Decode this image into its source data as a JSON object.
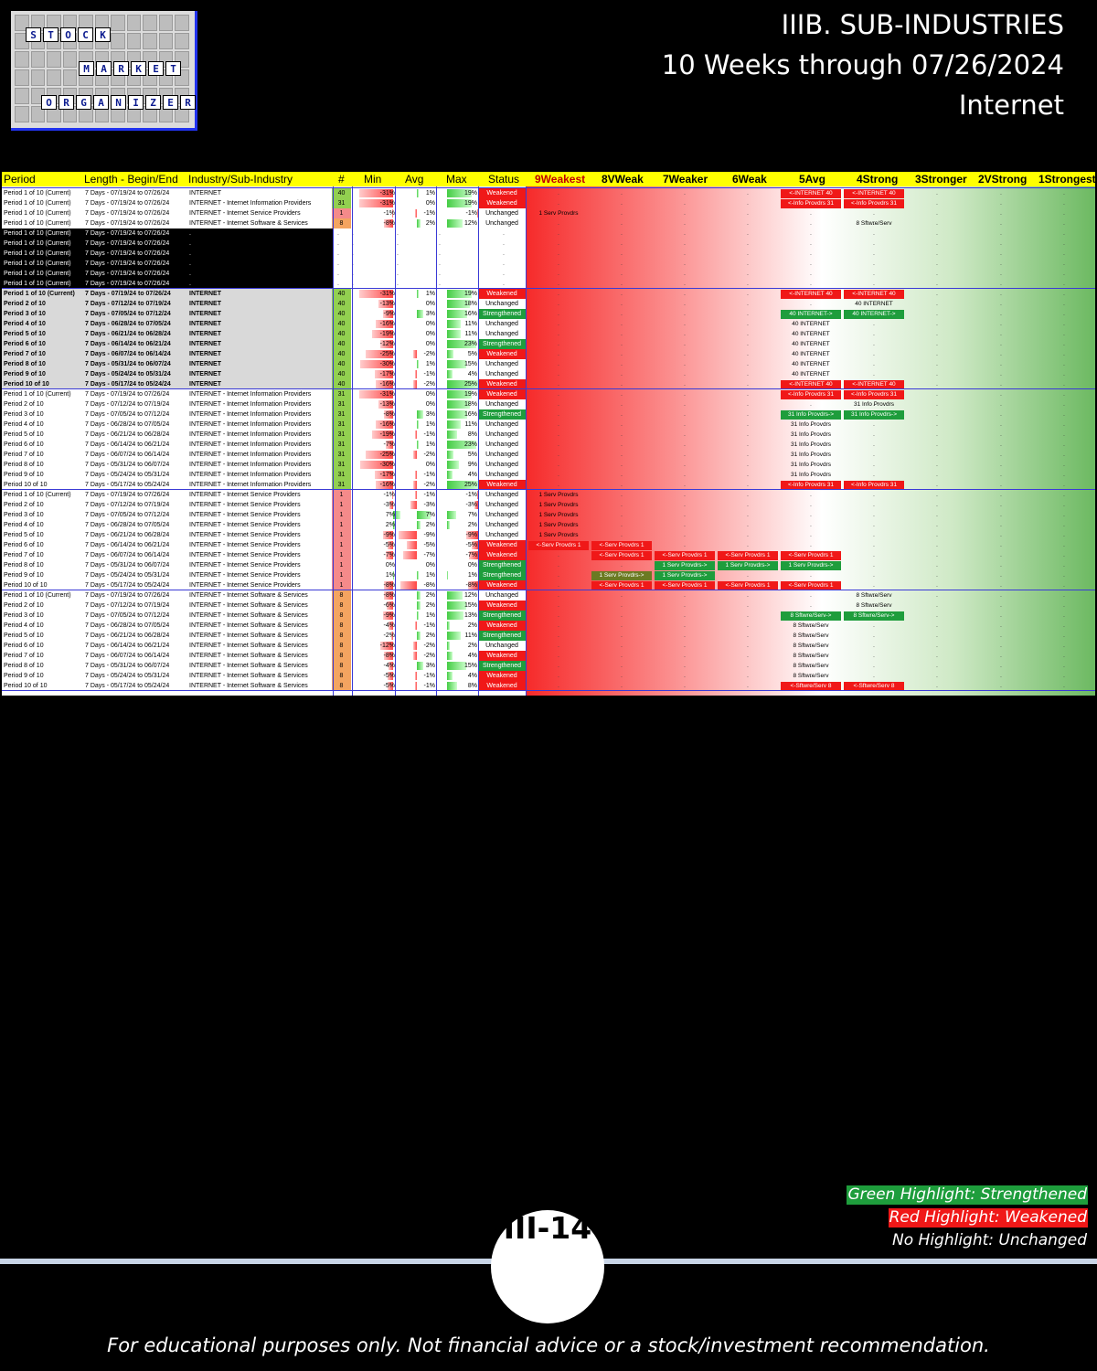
{
  "logo": {
    "row1": [
      "S",
      "T",
      "O",
      "C",
      "K"
    ],
    "row2": [
      "M",
      "A",
      "R",
      "K",
      "E",
      "T"
    ],
    "row3": [
      "O",
      "R",
      "G",
      "A",
      "N",
      "I",
      "Z",
      "E",
      "R"
    ]
  },
  "title": {
    "line1": "IIIB. SUB-INDUSTRIES",
    "line2": "10 Weeks through 07/26/2024",
    "line3": "Internet"
  },
  "colors": {
    "green": "#1e9d3c",
    "red": "#f01818",
    "yellow": "#ffff00",
    "lime": "#92d050",
    "orange": "#f4a460",
    "olive": "#6b7a22"
  },
  "table": {
    "headers": [
      "Period",
      "Length - Begin/End",
      "Industry/Sub-Industry",
      "#",
      "Min",
      "Avg",
      "Max",
      "Status",
      "9Weakest",
      "8VWeak",
      "7Weaker",
      "6Weak",
      "5Avg",
      "4Strong",
      "3Stronger",
      "2VStrong",
      "1Strongest"
    ],
    "rows": [
      [
        "Period 1 of 10 (Current)",
        "7 Days - 07/19/24 to 07/26/24",
        "INTERNET",
        "40",
        "-31%",
        "1%",
        "19%",
        "Weakened"
      ],
      [
        "Period 1 of 10 (Current)",
        "7 Days - 07/19/24 to 07/26/24",
        "INTERNET - Internet Information Providers",
        "31",
        "-31%",
        "0%",
        "19%",
        "Weakened"
      ],
      [
        "Period 1 of 10 (Current)",
        "7 Days - 07/19/24 to 07/26/24",
        "INTERNET - Internet Service Providers",
        "1",
        "-1%",
        "-1%",
        "-1%",
        "Unchanged"
      ],
      [
        "Period 1 of 10 (Current)",
        "7 Days - 07/19/24 to 07/26/24",
        "INTERNET - Internet Software & Services",
        "8",
        "-8%",
        "2%",
        "12%",
        "Unchanged"
      ],
      [
        "Period 1 of 10 (Current)",
        "7 Days - 07/19/24 to 07/26/24",
        ".",
        "",
        "",
        "",
        "",
        ""
      ],
      [
        "Period 1 of 10 (Current)",
        "7 Days - 07/19/24 to 07/26/24",
        ".",
        "",
        "",
        "",
        "",
        ""
      ],
      [
        "Period 1 of 10 (Current)",
        "7 Days - 07/19/24 to 07/26/24",
        ".",
        "",
        "",
        "",
        "",
        ""
      ],
      [
        "Period 1 of 10 (Current)",
        "7 Days - 07/19/24 to 07/26/24",
        ".",
        "",
        "",
        "",
        "",
        ""
      ],
      [
        "Period 1 of 10 (Current)",
        "7 Days - 07/19/24 to 07/26/24",
        ".",
        "",
        "",
        "",
        "",
        ""
      ],
      [
        "Period 1 of 10 (Current)",
        "7 Days - 07/19/24 to 07/26/24",
        ".",
        "",
        "",
        "",
        "",
        ""
      ],
      [
        "Period 1 of 10 (Current)",
        "7 Days - 07/19/24 to 07/26/24",
        "INTERNET",
        "40",
        "-31%",
        "1%",
        "19%",
        "Weakened"
      ],
      [
        "Period 2 of 10",
        "7 Days - 07/12/24 to 07/19/24",
        "INTERNET",
        "40",
        "-13%",
        "0%",
        "18%",
        "Unchanged"
      ],
      [
        "Period 3 of 10",
        "7 Days - 07/05/24 to 07/12/24",
        "INTERNET",
        "40",
        "-9%",
        "3%",
        "16%",
        "Strengthened"
      ],
      [
        "Period 4 of 10",
        "7 Days - 06/28/24 to 07/05/24",
        "INTERNET",
        "40",
        "-16%",
        "0%",
        "11%",
        "Unchanged"
      ],
      [
        "Period 5 of 10",
        "7 Days - 06/21/24 to 06/28/24",
        "INTERNET",
        "40",
        "-19%",
        "0%",
        "11%",
        "Unchanged"
      ],
      [
        "Period 6 of 10",
        "7 Days - 06/14/24 to 06/21/24",
        "INTERNET",
        "40",
        "-12%",
        "0%",
        "23%",
        "Strengthened"
      ],
      [
        "Period 7 of 10",
        "7 Days - 06/07/24 to 06/14/24",
        "INTERNET",
        "40",
        "-25%",
        "-2%",
        "5%",
        "Weakened"
      ],
      [
        "Period 8 of 10",
        "7 Days - 05/31/24 to 06/07/24",
        "INTERNET",
        "40",
        "-30%",
        "1%",
        "15%",
        "Unchanged"
      ],
      [
        "Period 9 of 10",
        "7 Days - 05/24/24 to 05/31/24",
        "INTERNET",
        "40",
        "-17%",
        "-1%",
        "4%",
        "Unchanged"
      ],
      [
        "Period 10 of 10",
        "7 Days - 05/17/24 to 05/24/24",
        "INTERNET",
        "40",
        "-16%",
        "-2%",
        "25%",
        "Weakened"
      ],
      [
        "Period 1 of 10 (Current)",
        "7 Days - 07/19/24 to 07/26/24",
        "INTERNET - Internet Information Providers",
        "31",
        "-31%",
        "0%",
        "19%",
        "Weakened"
      ],
      [
        "Period 2 of 10",
        "7 Days - 07/12/24 to 07/19/24",
        "INTERNET - Internet Information Providers",
        "31",
        "-13%",
        "0%",
        "18%",
        "Unchanged"
      ],
      [
        "Period 3 of 10",
        "7 Days - 07/05/24 to 07/12/24",
        "INTERNET - Internet Information Providers",
        "31",
        "-8%",
        "3%",
        "16%",
        "Strengthened"
      ],
      [
        "Period 4 of 10",
        "7 Days - 06/28/24 to 07/05/24",
        "INTERNET - Internet Information Providers",
        "31",
        "-16%",
        "1%",
        "11%",
        "Unchanged"
      ],
      [
        "Period 5 of 10",
        "7 Days - 06/21/24 to 06/28/24",
        "INTERNET - Internet Information Providers",
        "31",
        "-19%",
        "-1%",
        "8%",
        "Unchanged"
      ],
      [
        "Period 6 of 10",
        "7 Days - 06/14/24 to 06/21/24",
        "INTERNET - Internet Information Providers",
        "31",
        "-7%",
        "1%",
        "23%",
        "Unchanged"
      ],
      [
        "Period 7 of 10",
        "7 Days - 06/07/24 to 06/14/24",
        "INTERNET - Internet Information Providers",
        "31",
        "-25%",
        "-2%",
        "5%",
        "Unchanged"
      ],
      [
        "Period 8 of 10",
        "7 Days - 05/31/24 to 06/07/24",
        "INTERNET - Internet Information Providers",
        "31",
        "-30%",
        "0%",
        "9%",
        "Unchanged"
      ],
      [
        "Period 9 of 10",
        "7 Days - 05/24/24 to 05/31/24",
        "INTERNET - Internet Information Providers",
        "31",
        "-17%",
        "-1%",
        "4%",
        "Unchanged"
      ],
      [
        "Period 10 of 10",
        "7 Days - 05/17/24 to 05/24/24",
        "INTERNET - Internet Information Providers",
        "31",
        "-16%",
        "-2%",
        "25%",
        "Weakened"
      ],
      [
        "Period 1 of 10 (Current)",
        "7 Days - 07/19/24 to 07/26/24",
        "INTERNET - Internet Service Providers",
        "1",
        "-1%",
        "-1%",
        "-1%",
        "Unchanged"
      ],
      [
        "Period 2 of 10",
        "7 Days - 07/12/24 to 07/19/24",
        "INTERNET - Internet Service Providers",
        "1",
        "-3%",
        "-3%",
        "-3%",
        "Unchanged"
      ],
      [
        "Period 3 of 10",
        "7 Days - 07/05/24 to 07/12/24",
        "INTERNET - Internet Service Providers",
        "1",
        "7%",
        "7%",
        "7%",
        "Unchanged"
      ],
      [
        "Period 4 of 10",
        "7 Days - 06/28/24 to 07/05/24",
        "INTERNET - Internet Service Providers",
        "1",
        "2%",
        "2%",
        "2%",
        "Unchanged"
      ],
      [
        "Period 5 of 10",
        "7 Days - 06/21/24 to 06/28/24",
        "INTERNET - Internet Service Providers",
        "1",
        "-9%",
        "-9%",
        "-9%",
        "Unchanged"
      ],
      [
        "Period 6 of 10",
        "7 Days - 06/14/24 to 06/21/24",
        "INTERNET - Internet Service Providers",
        "1",
        "-5%",
        "-5%",
        "-5%",
        "Weakened"
      ],
      [
        "Period 7 of 10",
        "7 Days - 06/07/24 to 06/14/24",
        "INTERNET - Internet Service Providers",
        "1",
        "-7%",
        "-7%",
        "-7%",
        "Weakened"
      ],
      [
        "Period 8 of 10",
        "7 Days - 05/31/24 to 06/07/24",
        "INTERNET - Internet Service Providers",
        "1",
        "0%",
        "0%",
        "0%",
        "Strengthened"
      ],
      [
        "Period 9 of 10",
        "7 Days - 05/24/24 to 05/31/24",
        "INTERNET - Internet Service Providers",
        "1",
        "1%",
        "1%",
        "1%",
        "Strengthened"
      ],
      [
        "Period 10 of 10",
        "7 Days - 05/17/24 to 05/24/24",
        "INTERNET - Internet Service Providers",
        "1",
        "-8%",
        "-8%",
        "-8%",
        "Weakened"
      ],
      [
        "Period 1 of 10 (Current)",
        "7 Days - 07/19/24 to 07/26/24",
        "INTERNET - Internet Software & Services",
        "8",
        "-8%",
        "2%",
        "12%",
        "Unchanged"
      ],
      [
        "Period 2 of 10",
        "7 Days - 07/12/24 to 07/19/24",
        "INTERNET - Internet Software & Services",
        "8",
        "-6%",
        "2%",
        "15%",
        "Weakened"
      ],
      [
        "Period 3 of 10",
        "7 Days - 07/05/24 to 07/12/24",
        "INTERNET - Internet Software & Services",
        "8",
        "-9%",
        "1%",
        "13%",
        "Strengthened"
      ],
      [
        "Period 4 of 10",
        "7 Days - 06/28/24 to 07/05/24",
        "INTERNET - Internet Software & Services",
        "8",
        "-4%",
        "-1%",
        "2%",
        "Weakened"
      ],
      [
        "Period 5 of 10",
        "7 Days - 06/21/24 to 06/28/24",
        "INTERNET - Internet Software & Services",
        "8",
        "-2%",
        "2%",
        "11%",
        "Strengthened"
      ],
      [
        "Period 6 of 10",
        "7 Days - 06/14/24 to 06/21/24",
        "INTERNET - Internet Software & Services",
        "8",
        "-12%",
        "-2%",
        "2%",
        "Unchanged"
      ],
      [
        "Period 7 of 10",
        "7 Days - 06/07/24 to 06/14/24",
        "INTERNET - Internet Software & Services",
        "8",
        "-8%",
        "-2%",
        "4%",
        "Weakened"
      ],
      [
        "Period 8 of 10",
        "7 Days - 05/31/24 to 06/07/24",
        "INTERNET - Internet Software & Services",
        "8",
        "-4%",
        "3%",
        "15%",
        "Strengthened"
      ],
      [
        "Period 9 of 10",
        "7 Days - 05/24/24 to 05/31/24",
        "INTERNET - Internet Software & Services",
        "8",
        "-5%",
        "-1%",
        "4%",
        "Weakened"
      ],
      [
        "Period 10 of 10",
        "7 Days - 05/17/24 to 05/24/24",
        "INTERNET - Internet Software & Services",
        "8",
        "-5%",
        "-1%",
        "8%",
        "Weakened"
      ]
    ],
    "tags": [
      {
        "row": 0,
        "col": 4,
        "text": "<-INTERNET 40",
        "color": "red"
      },
      {
        "row": 0,
        "col": 5,
        "text": "<-INTERNET 40",
        "color": "red"
      },
      {
        "row": 1,
        "col": 4,
        "text": "<-Info Provdrs 31",
        "color": "red"
      },
      {
        "row": 1,
        "col": 5,
        "text": "<-Info Provdrs 31",
        "color": "red"
      },
      {
        "row": 2,
        "col": 0,
        "text": "1 Serv Provdrs",
        "color": "none"
      },
      {
        "row": 3,
        "col": 5,
        "text": "8 Sftwre/Serv",
        "color": "none"
      },
      {
        "row": 10,
        "col": 4,
        "text": "<-INTERNET 40",
        "color": "red"
      },
      {
        "row": 10,
        "col": 5,
        "text": "<-INTERNET 40",
        "color": "red"
      },
      {
        "row": 11,
        "col": 5,
        "text": "40 INTERNET",
        "color": "none"
      },
      {
        "row": 12,
        "col": 4,
        "text": "40 INTERNET->",
        "color": "green"
      },
      {
        "row": 12,
        "col": 5,
        "text": "40 INTERNET->",
        "color": "green"
      },
      {
        "row": 13,
        "col": 4,
        "text": "40 INTERNET",
        "color": "none"
      },
      {
        "row": 14,
        "col": 4,
        "text": "40 INTERNET",
        "color": "none"
      },
      {
        "row": 15,
        "col": 4,
        "text": "40 INTERNET",
        "color": "none"
      },
      {
        "row": 16,
        "col": 4,
        "text": "40 INTERNET",
        "color": "none"
      },
      {
        "row": 17,
        "col": 4,
        "text": "40 INTERNET",
        "color": "none"
      },
      {
        "row": 18,
        "col": 4,
        "text": "40 INTERNET",
        "color": "none"
      },
      {
        "row": 19,
        "col": 4,
        "text": "<-INTERNET 40",
        "color": "red"
      },
      {
        "row": 19,
        "col": 5,
        "text": "<-INTERNET 40",
        "color": "red"
      },
      {
        "row": 20,
        "col": 4,
        "text": "<-Info Provdrs 31",
        "color": "red"
      },
      {
        "row": 20,
        "col": 5,
        "text": "<-Info Provdrs 31",
        "color": "red"
      },
      {
        "row": 21,
        "col": 5,
        "text": "31 Info Provdrs",
        "color": "none"
      },
      {
        "row": 22,
        "col": 4,
        "text": "31 Info Provdrs->",
        "color": "green"
      },
      {
        "row": 22,
        "col": 5,
        "text": "31 Info Provdrs->",
        "color": "green"
      },
      {
        "row": 23,
        "col": 4,
        "text": "31 Info Provdrs",
        "color": "none"
      },
      {
        "row": 24,
        "col": 4,
        "text": "31 Info Provdrs",
        "color": "none"
      },
      {
        "row": 25,
        "col": 4,
        "text": "31 Info Provdrs",
        "color": "none"
      },
      {
        "row": 26,
        "col": 4,
        "text": "31 Info Provdrs",
        "color": "none"
      },
      {
        "row": 27,
        "col": 4,
        "text": "31 Info Provdrs",
        "color": "none"
      },
      {
        "row": 28,
        "col": 4,
        "text": "31 Info Provdrs",
        "color": "none"
      },
      {
        "row": 29,
        "col": 4,
        "text": "<-Info Provdrs 31",
        "color": "red"
      },
      {
        "row": 29,
        "col": 5,
        "text": "<-Info Provdrs 31",
        "color": "red"
      },
      {
        "row": 30,
        "col": 0,
        "text": "1 Serv Provdrs",
        "color": "none"
      },
      {
        "row": 31,
        "col": 0,
        "text": "1 Serv Provdrs",
        "color": "none"
      },
      {
        "row": 32,
        "col": 0,
        "text": "1 Serv Provdrs",
        "color": "none"
      },
      {
        "row": 33,
        "col": 0,
        "text": "1 Serv Provdrs",
        "color": "none"
      },
      {
        "row": 34,
        "col": 0,
        "text": "1 Serv Provdrs",
        "color": "none"
      },
      {
        "row": 35,
        "col": 0,
        "text": "<-Serv Provdrs 1",
        "color": "red"
      },
      {
        "row": 35,
        "col": 1,
        "text": "<-Serv Provdrs 1",
        "color": "red"
      },
      {
        "row": 36,
        "col": 1,
        "text": "<-Serv Provdrs 1",
        "color": "red"
      },
      {
        "row": 36,
        "col": 2,
        "text": "<-Serv Provdrs 1",
        "color": "red"
      },
      {
        "row": 36,
        "col": 3,
        "text": "<-Serv Provdrs 1",
        "color": "red"
      },
      {
        "row": 36,
        "col": 4,
        "text": "<-Serv Provdrs 1",
        "color": "red"
      },
      {
        "row": 37,
        "col": 2,
        "text": "1 Serv Provdrs->",
        "color": "green"
      },
      {
        "row": 37,
        "col": 3,
        "text": "1 Serv Provdrs->",
        "color": "green"
      },
      {
        "row": 37,
        "col": 4,
        "text": "1 Serv Provdrs->",
        "color": "green"
      },
      {
        "row": 38,
        "col": 1,
        "text": "1 Serv Provdrs->",
        "color": "olive"
      },
      {
        "row": 38,
        "col": 2,
        "text": "1 Serv Provdrs->",
        "color": "green"
      },
      {
        "row": 39,
        "col": 1,
        "text": "<-Serv Provdrs 1",
        "color": "red"
      },
      {
        "row": 39,
        "col": 2,
        "text": "<-Serv Provdrs 1",
        "color": "red"
      },
      {
        "row": 39,
        "col": 3,
        "text": "<-Serv Provdrs 1",
        "color": "red"
      },
      {
        "row": 39,
        "col": 4,
        "text": "<-Serv Provdrs 1",
        "color": "red"
      },
      {
        "row": 40,
        "col": 5,
        "text": "8 Sftwre/Serv",
        "color": "none"
      },
      {
        "row": 41,
        "col": 5,
        "text": "8 Sftwre/Serv",
        "color": "none"
      },
      {
        "row": 42,
        "col": 4,
        "text": "8 Sftwre/Serv->",
        "color": "green"
      },
      {
        "row": 42,
        "col": 5,
        "text": "8 Sftwre/Serv->",
        "color": "green"
      },
      {
        "row": 43,
        "col": 4,
        "text": "8 Sftwre/Serv",
        "color": "none"
      },
      {
        "row": 44,
        "col": 4,
        "text": "8 Sftwre/Serv",
        "color": "none"
      },
      {
        "row": 45,
        "col": 4,
        "text": "8 Sftwre/Serv",
        "color": "none"
      },
      {
        "row": 46,
        "col": 4,
        "text": "8 Sftwre/Serv",
        "color": "none"
      },
      {
        "row": 47,
        "col": 4,
        "text": "8 Sftwre/Serv",
        "color": "none"
      },
      {
        "row": 48,
        "col": 4,
        "text": "8 Sftwre/Serv",
        "color": "none"
      },
      {
        "row": 49,
        "col": 4,
        "text": "<-Sftwre/Serv 8",
        "color": "red"
      },
      {
        "row": 49,
        "col": 5,
        "text": "<-Sftwre/Serv 8",
        "color": "red"
      }
    ]
  },
  "legend": {
    "green": "Green Highlight: Strengthened",
    "red": "Red Highlight: Weakened",
    "none": "No Highlight: Unchanged"
  },
  "page_number": "III-14",
  "footer": "For educational purposes only. Not financial advice or a stock/investment recommendation."
}
